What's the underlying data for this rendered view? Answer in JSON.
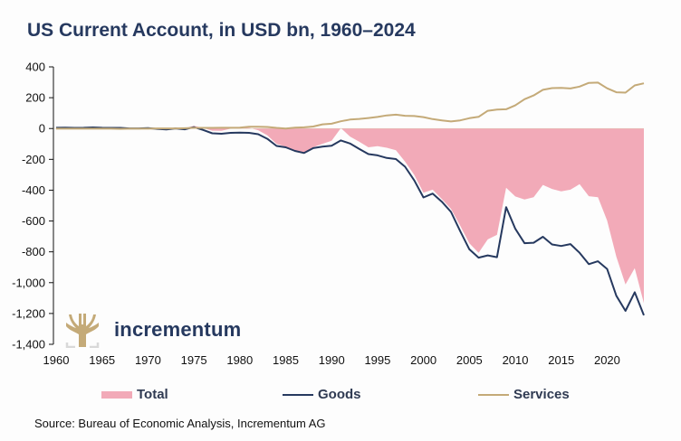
{
  "chart_data": {
    "type": "area",
    "title": "US Current Account, in USD bn, 1960–2024",
    "xlabel": "",
    "ylabel": "",
    "ylim": [
      -1400,
      400
    ],
    "xlim": [
      1960,
      2024
    ],
    "grid": false,
    "legend_position": "bottom",
    "yticks": [
      400,
      200,
      0,
      -200,
      -400,
      -600,
      -800,
      -1000,
      -1200,
      -1400
    ],
    "ytick_labels": [
      "400",
      "200",
      "0",
      "-200",
      "-400",
      "-600",
      "-800",
      "-1,000",
      "-1,200",
      "-1,400"
    ],
    "xticks": [
      1960,
      1965,
      1970,
      1975,
      1980,
      1985,
      1990,
      1995,
      2000,
      2005,
      2010,
      2015,
      2020
    ],
    "xtick_labels": [
      "1960",
      "1965",
      "1970",
      "1975",
      "1980",
      "1985",
      "1990",
      "1995",
      "2000",
      "2005",
      "2010",
      "2015",
      "2020"
    ],
    "x": [
      1960,
      1961,
      1962,
      1963,
      1964,
      1965,
      1966,
      1967,
      1968,
      1969,
      1970,
      1971,
      1972,
      1973,
      1974,
      1975,
      1976,
      1977,
      1978,
      1979,
      1980,
      1981,
      1982,
      1983,
      1984,
      1985,
      1986,
      1987,
      1988,
      1989,
      1990,
      1991,
      1992,
      1993,
      1994,
      1995,
      1996,
      1997,
      1998,
      1999,
      2000,
      2001,
      2002,
      2003,
      2004,
      2005,
      2006,
      2007,
      2008,
      2009,
      2010,
      2011,
      2012,
      2013,
      2014,
      2015,
      2016,
      2017,
      2018,
      2019,
      2020,
      2021,
      2022,
      2023,
      2024
    ],
    "series": [
      {
        "name": "Total",
        "kind": "area",
        "color": "#f2aab8",
        "values": [
          3,
          4,
          3,
          4,
          7,
          6,
          3,
          2,
          1,
          0,
          2,
          -1,
          -6,
          7,
          2,
          18,
          4,
          -14,
          -15,
          -1,
          2,
          5,
          -11,
          -44,
          -100,
          -118,
          -147,
          -161,
          -121,
          -99,
          -79,
          3,
          -52,
          -85,
          -122,
          -114,
          -125,
          -141,
          -215,
          -301,
          -416,
          -397,
          -458,
          -521,
          -631,
          -745,
          -806,
          -719,
          -690,
          -384,
          -441,
          -460,
          -446,
          -366,
          -392,
          -408,
          -397,
          -361,
          -439,
          -446,
          -597,
          -832,
          -1012,
          -906,
          -1133
        ]
      },
      {
        "name": "Goods",
        "kind": "line",
        "color": "#26395f",
        "values": [
          5,
          6,
          4,
          5,
          7,
          5,
          4,
          4,
          1,
          1,
          3,
          -2,
          -6,
          1,
          -5,
          9,
          -9,
          -31,
          -34,
          -28,
          -26,
          -28,
          -37,
          -67,
          -113,
          -122,
          -145,
          -159,
          -127,
          -118,
          -111,
          -77,
          -97,
          -132,
          -166,
          -174,
          -191,
          -198,
          -248,
          -337,
          -447,
          -422,
          -475,
          -541,
          -666,
          -784,
          -838,
          -823,
          -835,
          -510,
          -650,
          -744,
          -741,
          -702,
          -752,
          -762,
          -750,
          -806,
          -880,
          -861,
          -911,
          -1085,
          -1183,
          -1062,
          -1212
        ]
      },
      {
        "name": "Services",
        "kind": "line",
        "color": "#c4aa78",
        "values": [
          -1,
          -1,
          -1,
          -1,
          -1,
          -1,
          -1,
          -2,
          -1,
          -1,
          -1,
          1,
          1,
          1,
          2,
          4,
          4,
          4,
          5,
          5,
          6,
          12,
          12,
          10,
          4,
          0,
          6,
          8,
          13,
          27,
          31,
          47,
          58,
          62,
          68,
          75,
          85,
          90,
          83,
          81,
          74,
          61,
          53,
          46,
          53,
          67,
          76,
          115,
          123,
          125,
          150,
          190,
          215,
          251,
          262,
          264,
          260,
          272,
          296,
          298,
          261,
          235,
          233,
          280,
          293
        ]
      }
    ]
  },
  "legend": [
    {
      "label": "Total",
      "kind": "area",
      "color": "#f2aab8"
    },
    {
      "label": "Goods",
      "kind": "line",
      "color": "#26395f"
    },
    {
      "label": "Services",
      "kind": "line",
      "color": "#c4aa78"
    }
  ],
  "source": "Source: Bureau of Economic Analysis, Incrementum AG",
  "logo": {
    "text": "incrementum",
    "icon": "tree-icon"
  },
  "colors": {
    "axis": "#111111",
    "title": "#26395f",
    "logo_gold": "#c4aa78",
    "logo_gray": "#d9d9d9"
  }
}
